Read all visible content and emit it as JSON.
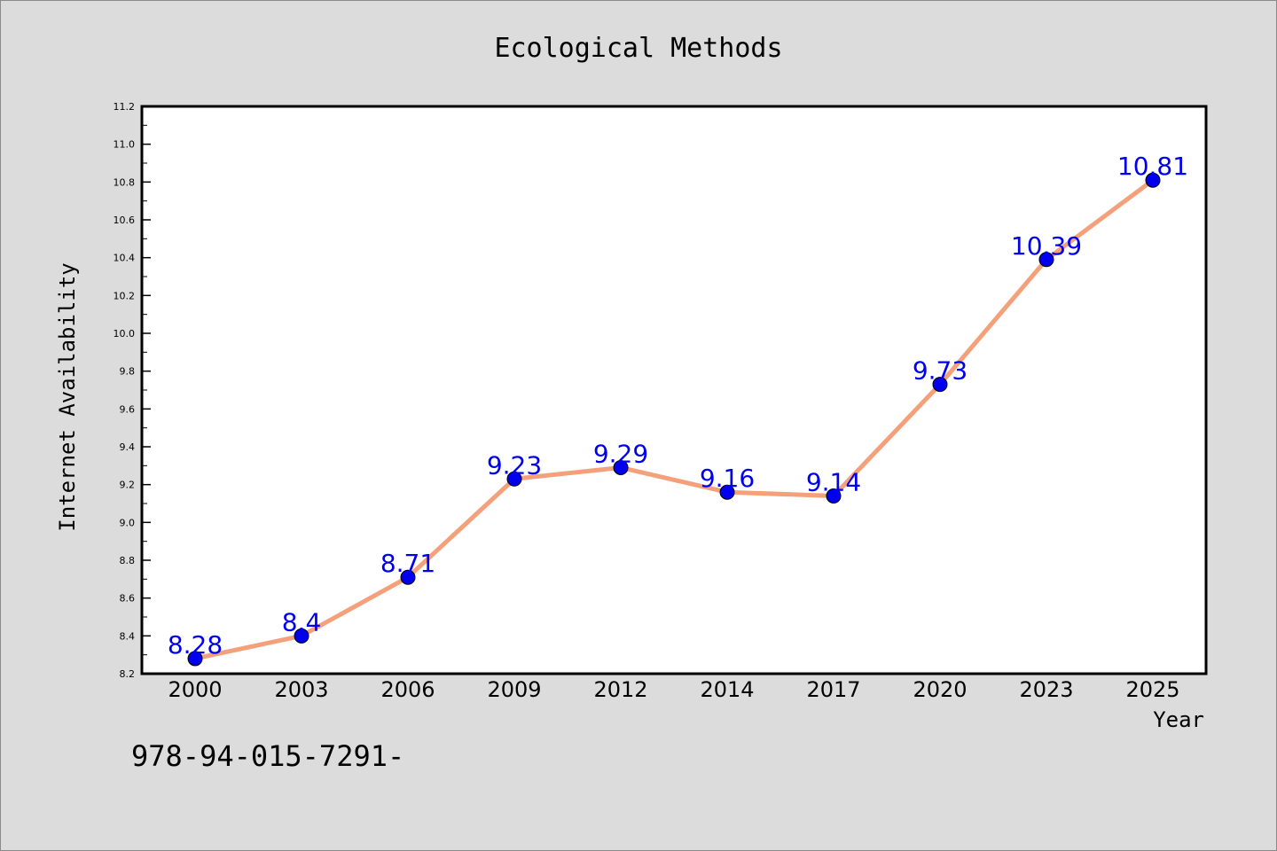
{
  "chart_data": {
    "type": "line",
    "title": "Ecological Methods",
    "xlabel": "Year",
    "ylabel": "Internet Availability",
    "categories": [
      "2000",
      "2003",
      "2006",
      "2009",
      "2012",
      "2014",
      "2017",
      "2020",
      "2023",
      "2025"
    ],
    "series": [
      {
        "values": [
          8.28,
          8.4,
          8.71,
          9.23,
          9.29,
          9.16,
          9.14,
          9.73,
          10.39,
          10.81
        ],
        "data_labels": [
          "8.28",
          "8.4",
          "8.71",
          "9.23",
          "9.29",
          "9.16",
          "9.14",
          "9.73",
          "10.39",
          "10.81"
        ],
        "line_color": "#f4a07a",
        "marker_color": "#0000ee",
        "label_color": "#0000ee"
      }
    ],
    "ylim": [
      8.2,
      11.2
    ],
    "yticks": [
      "8.2",
      "8.4",
      "8.6",
      "8.8",
      "9.0",
      "9.2",
      "9.4",
      "9.6",
      "9.8",
      "10.0",
      "10.2",
      "10.4",
      "10.6",
      "10.8",
      "11.0",
      "11.2"
    ],
    "grid": false,
    "legend": false
  },
  "footer_text": "978-94-015-7291-",
  "colors": {
    "background": "#dcdcdc",
    "plot_background": "#ffffff",
    "axis": "#000000"
  }
}
